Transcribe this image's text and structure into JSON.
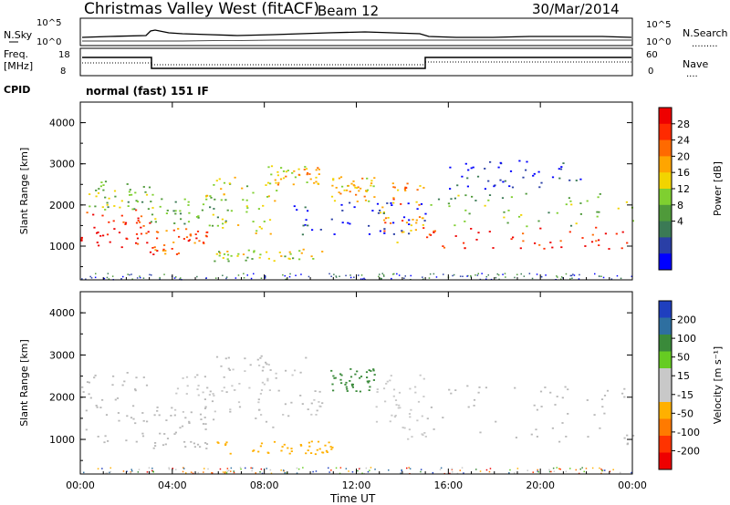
{
  "header": {
    "station": "Christmas Valley West (fitACF)",
    "beam": "Beam 12",
    "date": "30/Mar/2014"
  },
  "summary": {
    "nsky_label": "N.Sky",
    "nsky_ticks": [
      "10^5",
      "10^0"
    ],
    "nsearch_label": "N.Search",
    "nsearch_ticks": [
      "10^5",
      "10^0"
    ],
    "freq_label": [
      "Freq.",
      "[MHz]"
    ],
    "freq_ticks": [
      "18",
      "8"
    ],
    "nave_label": "Nave",
    "nave_ticks": [
      "60",
      "0"
    ],
    "cpid_label": "CPID",
    "cpid_value": "normal (fast) 151 IF"
  },
  "colors": {
    "power": [
      "#0000ff",
      "#2a3fa6",
      "#3b7a55",
      "#4f9a3a",
      "#7fcf30",
      "#f2d400",
      "#ffa500",
      "#ff6a00",
      "#ff2a00",
      "#ee0000"
    ],
    "velocity": [
      "#1f3fbf",
      "#2e6fa0",
      "#3a8a3a",
      "#66cc22",
      "#c8c8c8",
      "#c8c8c8",
      "#ffb000",
      "#ff7a00",
      "#ff3300",
      "#ee0000"
    ],
    "ground_scatter": "#b8b8b8"
  },
  "chart_data": [
    {
      "type": "heatmap",
      "name": "power-panel",
      "ylabel": "Slant Range [km]",
      "xlabel": "Time UT",
      "y_ticks": [
        "1000",
        "2000",
        "3000",
        "4000"
      ],
      "y_range": [
        180,
        4500
      ],
      "x_ticks": [
        "00:00",
        "04:00",
        "08:00",
        "12:00",
        "16:00",
        "20:00",
        "00:00"
      ],
      "x_range_hours": [
        0,
        24
      ],
      "colorbar_label": "Power [dB]",
      "colorbar_ticks": [
        "28",
        "24",
        "20",
        "16",
        "12",
        "8",
        "4"
      ],
      "colorbar_range": [
        0,
        32
      ],
      "regions": [
        {
          "t": [
            0,
            3.0
          ],
          "r": [
            900,
            1900
          ],
          "level": 29
        },
        {
          "t": [
            0,
            3.0
          ],
          "r": [
            1900,
            2600
          ],
          "level": 14
        },
        {
          "t": [
            3.0,
            5.5
          ],
          "r": [
            800,
            1500
          ],
          "level": 27
        },
        {
          "t": [
            3.0,
            6.5
          ],
          "r": [
            1500,
            2300
          ],
          "level": 15
        },
        {
          "t": [
            5.0,
            8.5
          ],
          "r": [
            1300,
            2700
          ],
          "level": 17
        },
        {
          "t": [
            8.0,
            10.5
          ],
          "r": [
            2500,
            3000
          ],
          "level": 20
        },
        {
          "t": [
            5.8,
            10.8
          ],
          "r": [
            650,
            950
          ],
          "level": 16
        },
        {
          "t": [
            10.8,
            12.8
          ],
          "r": [
            2100,
            2700
          ],
          "level": 22
        },
        {
          "t": [
            13.0,
            15.0
          ],
          "r": [
            1000,
            2600
          ],
          "level": 24
        },
        {
          "t": [
            15.0,
            24.0
          ],
          "r": [
            950,
            1500
          ],
          "level": 29
        },
        {
          "t": [
            15.0,
            24.0
          ],
          "r": [
            1500,
            2300
          ],
          "level": 14
        },
        {
          "t": [
            16.0,
            22.0
          ],
          "r": [
            2400,
            3100
          ],
          "level": 5
        },
        {
          "t": [
            9.0,
            15.0
          ],
          "r": [
            1300,
            2100
          ],
          "level": 5
        }
      ]
    },
    {
      "type": "heatmap",
      "name": "velocity-panel",
      "ylabel": "Slant Range [km]",
      "xlabel": "Time UT",
      "y_ticks": [
        "1000",
        "2000",
        "3000",
        "4000"
      ],
      "y_range": [
        180,
        4500
      ],
      "x_ticks": [
        "00:00",
        "04:00",
        "08:00",
        "12:00",
        "16:00",
        "20:00",
        "00:00"
      ],
      "x_range_hours": [
        0,
        24
      ],
      "colorbar_label": "Velocity [m s⁻¹]",
      "colorbar_ticks": [
        "200",
        "100",
        "50",
        "15",
        "-15",
        "-50",
        "-100",
        "-200"
      ],
      "colorbar_range": [
        -250,
        250
      ],
      "regions": [
        {
          "t": [
            0,
            3.0
          ],
          "r": [
            900,
            2600
          ],
          "v": 0
        },
        {
          "t": [
            3.0,
            5.5
          ],
          "r": [
            800,
            1800
          ],
          "v": 0
        },
        {
          "t": [
            5.0,
            10.5
          ],
          "r": [
            1300,
            3000
          ],
          "v": 0
        },
        {
          "t": [
            5.8,
            11.0
          ],
          "r": [
            650,
            1000
          ],
          "v": -60
        },
        {
          "t": [
            10.8,
            12.8
          ],
          "r": [
            2100,
            2700
          ],
          "v": 120
        },
        {
          "t": [
            12.8,
            15.0
          ],
          "r": [
            1000,
            2600
          ],
          "v": 40
        },
        {
          "t": [
            15.0,
            24.0
          ],
          "r": [
            900,
            2300
          ],
          "v": 0
        },
        {
          "t": [
            4.0,
            10.5
          ],
          "r": [
            1600,
            2800
          ],
          "v": -40
        }
      ]
    }
  ]
}
